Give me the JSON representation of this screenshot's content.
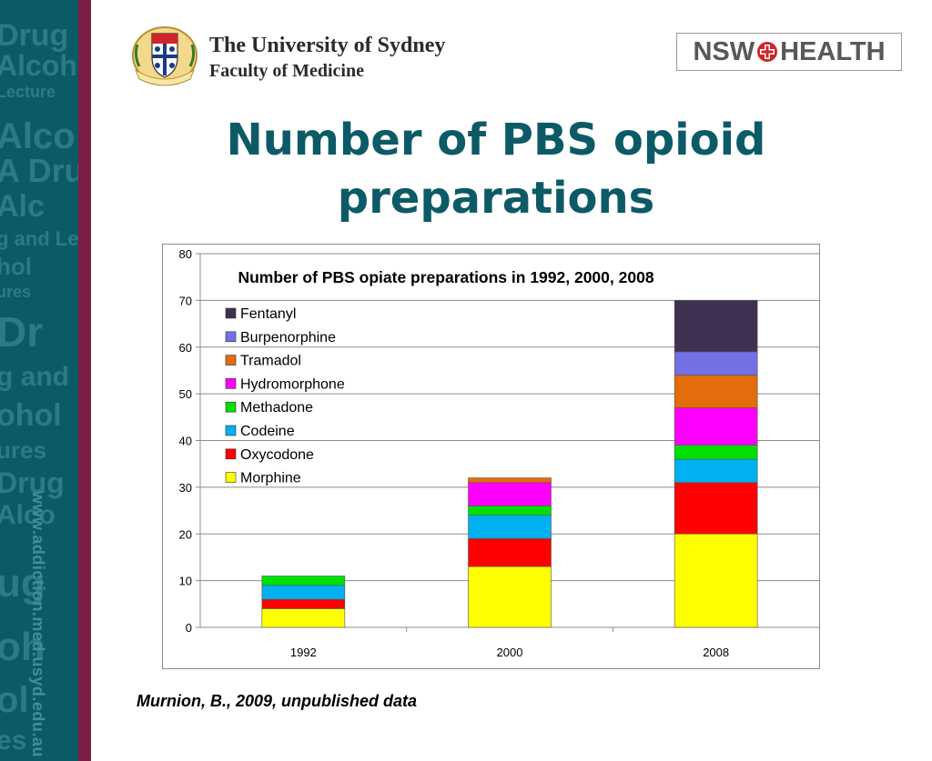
{
  "header": {
    "university_name": "The University of Sydney",
    "faculty_name": "Faculty of Medicine",
    "health_logo_left": "NSW",
    "health_logo_right": "HEALTH",
    "health_logo_color": "#58585a",
    "health_cross_color": "#d2232a"
  },
  "slide": {
    "title": "Number of PBS opioid preparations",
    "title_color": "#0d5a67",
    "citation": "Murnion, B., 2009, unpublished data"
  },
  "sidebar": {
    "url": "www.addiction.med.usyd.edu.au",
    "band_color": "#0d5a67",
    "stripe_color": "#7a1e45"
  },
  "chart_data": {
    "type": "bar",
    "stacked": true,
    "title": "Number of PBS opiate preparations in 1992, 2000, 2008",
    "categories": [
      "1992",
      "2000",
      "2008"
    ],
    "ylim": [
      0,
      80
    ],
    "yticks": [
      0,
      10,
      20,
      30,
      40,
      50,
      60,
      70,
      80
    ],
    "grid": true,
    "legend_position": "top-left",
    "series": [
      {
        "name": "Morphine",
        "color": "#ffff00",
        "values": [
          4,
          13,
          20
        ]
      },
      {
        "name": "Oxycodone",
        "color": "#ff0000",
        "values": [
          2,
          6,
          11
        ]
      },
      {
        "name": "Codeine",
        "color": "#00b0f0",
        "values": [
          3,
          5,
          5
        ]
      },
      {
        "name": "Methadone",
        "color": "#00e000",
        "values": [
          2,
          2,
          3
        ]
      },
      {
        "name": "Hydromorphone",
        "color": "#ff00ff",
        "values": [
          0,
          5,
          8
        ]
      },
      {
        "name": "Tramadol",
        "color": "#e46c0a",
        "values": [
          0,
          1,
          7
        ]
      },
      {
        "name": "Burpenorphine",
        "color": "#7470e6",
        "values": [
          0,
          0,
          5
        ]
      },
      {
        "name": "Fentanyl",
        "color": "#3f3151",
        "values": [
          0,
          0,
          11
        ]
      }
    ]
  }
}
